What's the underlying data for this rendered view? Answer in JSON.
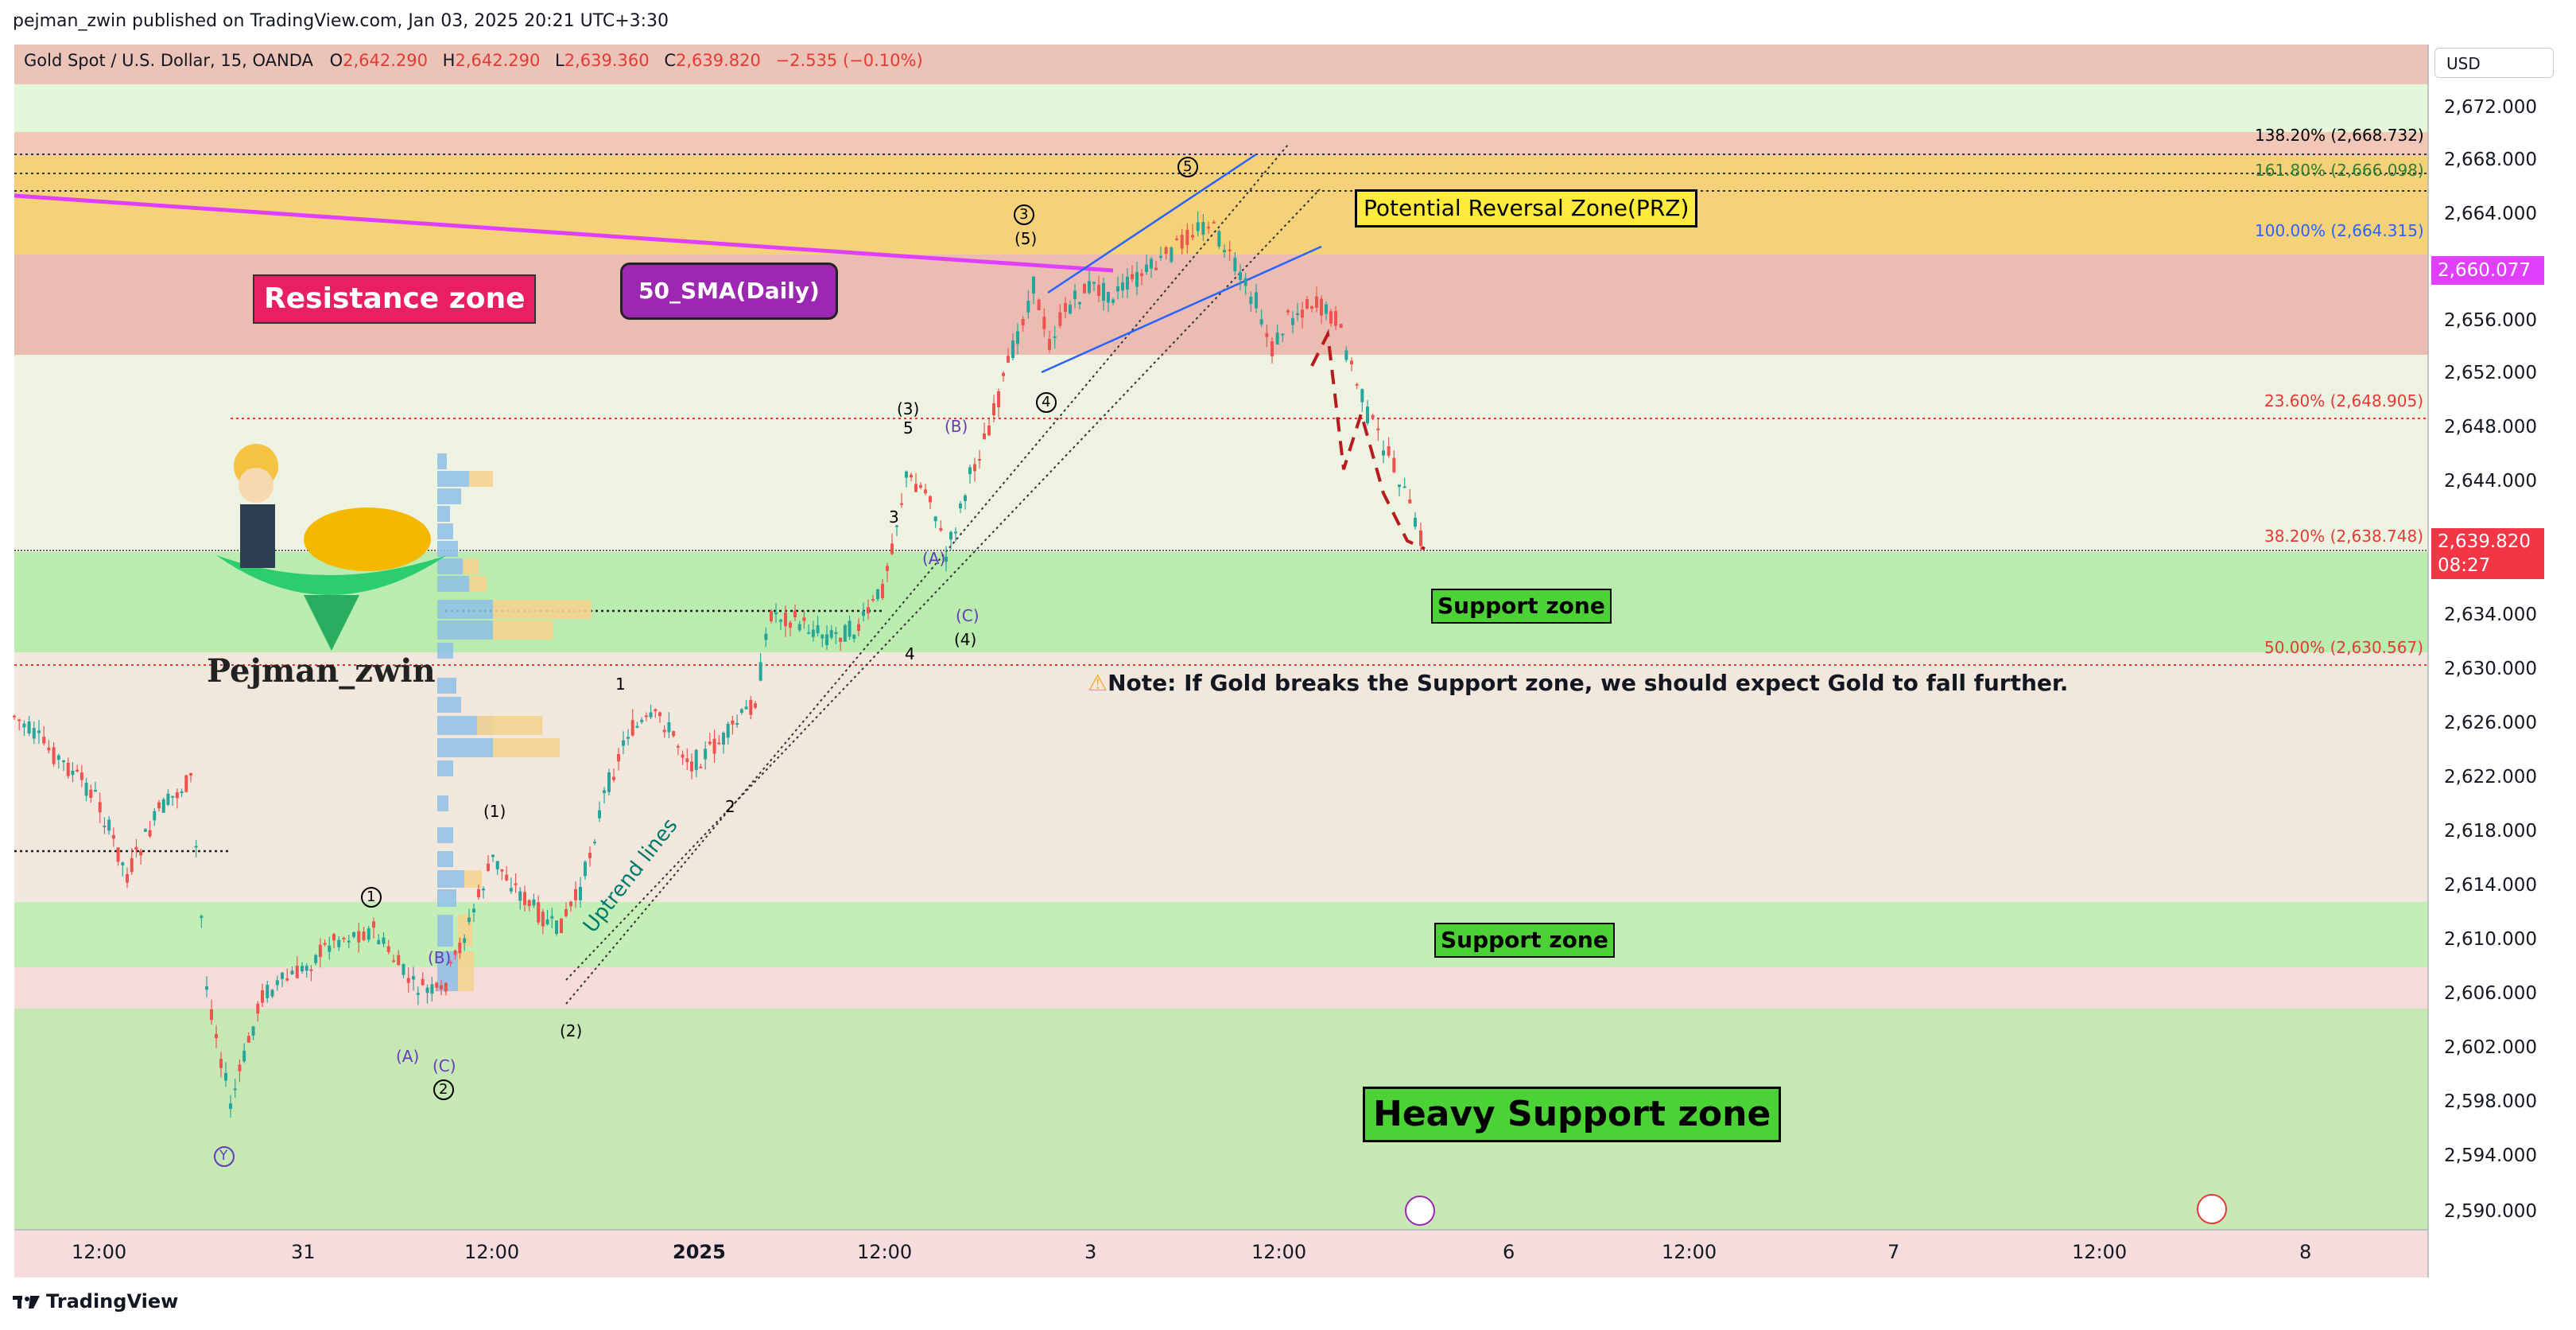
{
  "header": {
    "published": "pejman_zwin published on TradingView.com, Jan 03, 2025 20:21 UTC+3:30"
  },
  "legend": {
    "symbol": "Gold Spot / U.S. Dollar, 15, OANDA",
    "o_label": "O",
    "o_value": "2,642.290",
    "h_label": "H",
    "h_value": "2,642.290",
    "l_label": "L",
    "l_value": "2,639.360",
    "c_label": "C",
    "c_value": "2,639.820",
    "change": "−2.535 (−0.10%)"
  },
  "currency": "USD",
  "price_axis": {
    "ticks": [
      "2,672.000",
      "2,668.000",
      "2,664.000",
      "2,660.000",
      "2,656.000",
      "2,652.000",
      "2,648.000",
      "2,644.000",
      "2,640.000",
      "2,634.000",
      "2,630.000",
      "2,626.000",
      "2,622.000",
      "2,618.000",
      "2,614.000",
      "2,610.000",
      "2,606.000",
      "2,602.000",
      "2,598.000",
      "2,594.000",
      "2,590.000"
    ],
    "sma_price": "2,660.077",
    "last_price": "2,639.820",
    "countdown": "08:27",
    "sma_color": "#e040fb",
    "last_color": "#f23645"
  },
  "time_axis": {
    "ticks": [
      "12:00",
      "31",
      "12:00",
      "2025",
      "12:00",
      "3",
      "12:00",
      "6",
      "12:00",
      "7",
      "12:00",
      "8"
    ]
  },
  "fib_levels": [
    {
      "label": "138.20% (2,668.732)",
      "color": "#131722"
    },
    {
      "label": "161.80% (2,666.098)",
      "color": "#2e7d32"
    },
    {
      "label": "100.00% (2,664.315)",
      "color": "#2962ff"
    },
    {
      "label": "23.60% (2,648.905)",
      "color": "#e53935"
    },
    {
      "label": "38.20% (2,638.748)",
      "color": "#e53935"
    },
    {
      "label": "50.00% (2,630.567)",
      "color": "#e53935"
    }
  ],
  "annotations": {
    "resistance": "Resistance zone",
    "sma": "50_SMA(Daily)",
    "prz": "Potential Reversal Zone(PRZ)",
    "support1": "Support zone",
    "support2": "Support zone",
    "heavy": "Heavy Support zone",
    "note": "Note: If Gold breaks the Support zone, we should expect Gold to fall further.",
    "uptrend": "Uptrend lines",
    "brand": "Pejman_zwin"
  },
  "wave_labels": {
    "w1": "1",
    "w1p": "(1)",
    "w2p": "(2)",
    "w2": "2",
    "w3": "3",
    "w3p": "(3)",
    "w4": "4",
    "w4p": "(4)",
    "w5": "5",
    "w5p": "(5)",
    "circ1": "1",
    "circ2": "2",
    "circ3": "3",
    "circ4": "4",
    "circ5": "5",
    "a": "(A)",
    "b": "(B)",
    "c": "(C)",
    "a2": "(A)",
    "b2": "(B)",
    "c2": "(C)",
    "y": "Y"
  },
  "footer": {
    "brand": "TradingView"
  }
}
